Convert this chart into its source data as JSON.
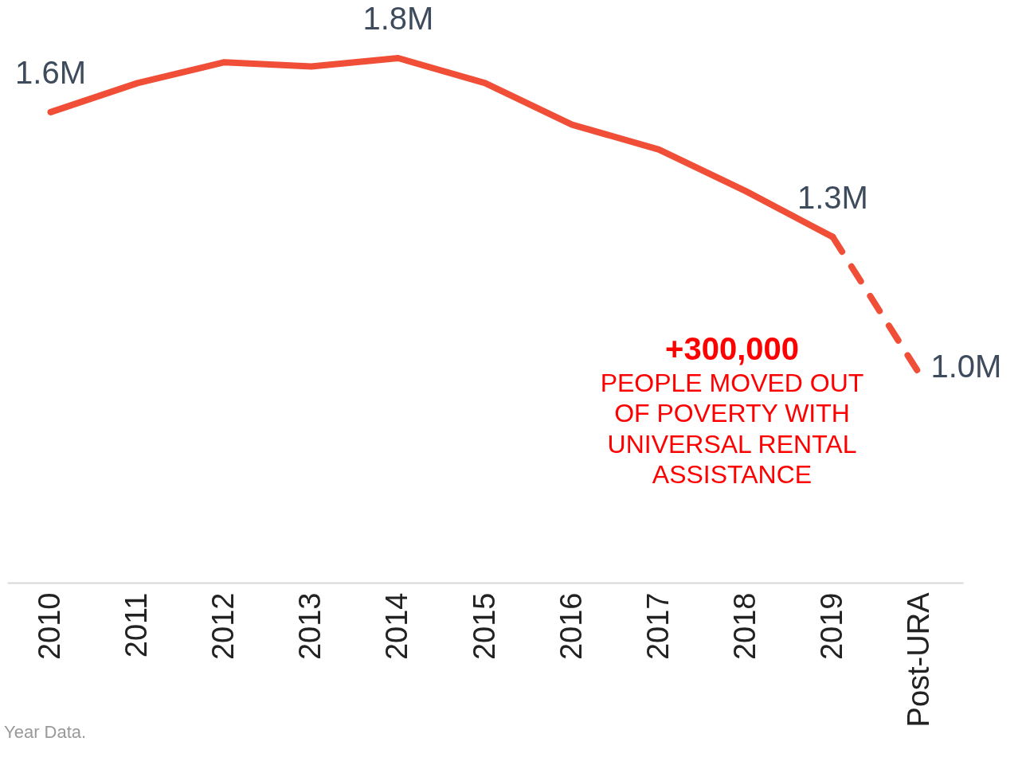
{
  "chart_data": {
    "type": "line",
    "categories": [
      "2010",
      "2011",
      "2012",
      "2013",
      "2014",
      "2015",
      "2016",
      "2017",
      "2018",
      "2019",
      "Post-URA"
    ],
    "series": [
      {
        "color": "#f04e37",
        "line_style": "solid",
        "values": [
          1.63,
          1.7,
          1.75,
          1.74,
          1.76,
          1.7,
          1.6,
          1.54,
          1.44,
          1.33,
          null
        ],
        "value_labels": [
          "1.6M",
          null,
          null,
          null,
          "1.8M",
          null,
          null,
          null,
          null,
          "1.3M",
          null
        ]
      },
      {
        "color": "#f04e37",
        "line_style": "dashed",
        "values": [
          null,
          null,
          null,
          null,
          null,
          null,
          null,
          null,
          null,
          1.33,
          1.0
        ],
        "value_labels": [
          null,
          null,
          null,
          null,
          null,
          null,
          null,
          null,
          null,
          null,
          "1.0M"
        ]
      }
    ],
    "tick_labels": "x",
    "grid": false,
    "marker": "none",
    "annotations": [
      "+300,000",
      "PEOPLE MOVED OUT\nOF POVERTY WITH\nUNIVERSAL RENTAL\nASSISTANCE",
      "Year Data."
    ]
  }
}
